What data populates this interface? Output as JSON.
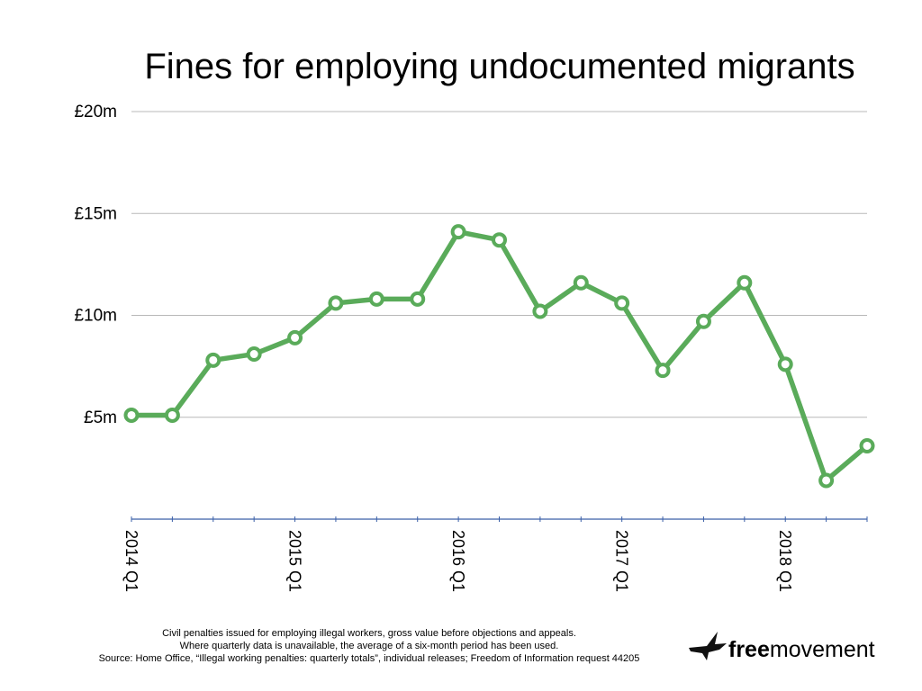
{
  "colors": {
    "line": "#5aab5a",
    "grid": "#b8b8b8",
    "axis": "#3a5fa8"
  },
  "chart_data": {
    "type": "line",
    "title": "Fines for employing undocumented migrants",
    "xlabel": "",
    "ylabel": "",
    "ylim": [
      0,
      20
    ],
    "y_unit": "£m",
    "yticks": [
      {
        "value": 5,
        "label": "£5m"
      },
      {
        "value": 10,
        "label": "£10m"
      },
      {
        "value": 15,
        "label": "£15m"
      },
      {
        "value": 20,
        "label": "£20m"
      }
    ],
    "x": [
      "2014 Q1",
      "2014 Q2",
      "2014 Q3",
      "2014 Q4",
      "2015 Q1",
      "2015 Q2",
      "2015 Q3",
      "2015 Q4",
      "2016 Q1",
      "2016 Q2",
      "2016 Q3",
      "2016 Q4",
      "2017 Q1",
      "2017 Q2",
      "2017 Q3",
      "2017 Q4",
      "2018 Q1",
      "2018 Q2",
      "2018 Q3"
    ],
    "xtick_labels": [
      "2014 Q1",
      "2015 Q1",
      "2016 Q1",
      "2017 Q1",
      "2018 Q1"
    ],
    "series": [
      {
        "values": [
          5.1,
          5.1,
          7.8,
          8.1,
          8.9,
          10.6,
          10.8,
          10.8,
          14.1,
          13.7,
          10.2,
          11.6,
          10.6,
          7.3,
          9.7,
          11.6,
          7.6,
          1.9,
          3.6
        ]
      }
    ],
    "grid": true
  },
  "footnote": {
    "line1": "Civil penalties issued for employing illegal workers, gross value before objections and appeals.",
    "line2": "Where quarterly data is unavailable, the average of a six-month period has been used.",
    "line3": "Source: Home Office, “Illegal working penalties: quarterly totals”, individual releases; Freedom of Information request 44205"
  },
  "logo": {
    "bold": "free",
    "regular": "movement",
    "icon": "bird-icon"
  }
}
